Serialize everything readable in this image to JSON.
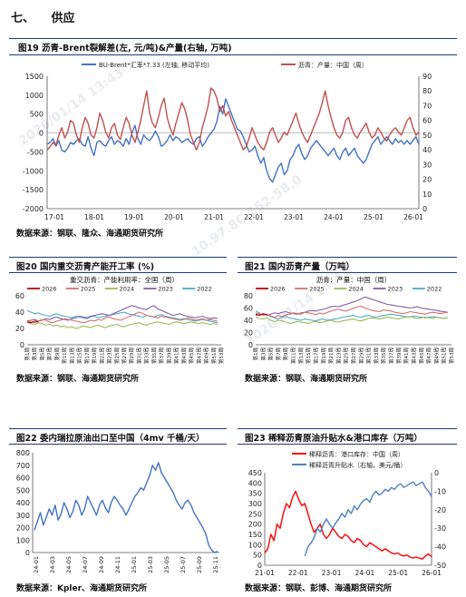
{
  "section": {
    "number": "七、",
    "title": "供应"
  },
  "fig19": {
    "title": "图19 沥青-Brent裂解差(左, 元/吨)&产量(右轴, 万吨)",
    "source": "数据来源：钢联、隆众、海通期货研究所",
    "chart_data": {
      "type": "line",
      "x_tick_labels": [
        "17-01",
        "18-01",
        "19-01",
        "20-01",
        "21-01",
        "22-01",
        "23-01",
        "24-01",
        "25-01",
        "26-01"
      ],
      "y_left_ticks": [
        "1500",
        "1000",
        "500",
        "0",
        "-500",
        "-1000",
        "-1500",
        "-2000"
      ],
      "y_right_ticks": [
        "90",
        "80",
        "70",
        "60",
        "50",
        "40",
        "30",
        "20",
        "10",
        "0"
      ],
      "ylim_left": [
        -2000,
        1500
      ],
      "ylim_right": [
        0,
        90
      ],
      "series": [
        {
          "name": "BU-Brent*汇率*7.33 (左轴, 移动平均)",
          "color": "#4472c4",
          "axis": "left",
          "values": [
            -300,
            -250,
            -150,
            -350,
            -200,
            -450,
            -500,
            -400,
            -250,
            -300,
            -200,
            -150,
            -300,
            -350,
            -100,
            -400,
            -600,
            -250,
            -200,
            -300,
            -350,
            -200,
            -100,
            -300,
            -200,
            -250,
            -350,
            -150,
            -300,
            0,
            200,
            -150,
            -300,
            -50,
            -150,
            -200,
            -100,
            50,
            -100,
            -350,
            -300,
            -200,
            -50,
            -200,
            -100,
            -150,
            -250,
            -200,
            -150,
            -250,
            -300,
            -150,
            -100,
            -350,
            -250,
            -100,
            0,
            100,
            300,
            700,
            500,
            900,
            700,
            500,
            300,
            100,
            50,
            -100,
            -300,
            -500,
            -450,
            -350,
            -600,
            -800,
            -650,
            -1000,
            -1200,
            -1300,
            -1100,
            -900,
            -800,
            -1100,
            -1000,
            -700,
            -600,
            -400,
            -300,
            -550,
            -700,
            -600,
            -400,
            -300,
            -200,
            -300,
            -400,
            -500,
            -600,
            -500,
            -400,
            -600,
            -700,
            -500,
            -400,
            -600,
            -500,
            -400,
            -600,
            -700,
            -800,
            -700,
            -500,
            -300,
            -200,
            -100,
            -300,
            -200,
            -100,
            -200,
            -300,
            -150,
            -250,
            -200,
            -300,
            -200,
            -300,
            -200,
            -100,
            -300
          ]
        },
        {
          "name": "沥青：产量：中国（周）",
          "color": "#c0504d",
          "axis": "right",
          "values": [
            40,
            42,
            45,
            43,
            50,
            55,
            48,
            52,
            60,
            58,
            50,
            45,
            55,
            62,
            58,
            50,
            48,
            55,
            65,
            60,
            52,
            48,
            55,
            58,
            50,
            47,
            55,
            62,
            58,
            50,
            45,
            52,
            60,
            70,
            80,
            65,
            58,
            55,
            62,
            70,
            75,
            62,
            55,
            50,
            58,
            65,
            72,
            68,
            60,
            50,
            45,
            40,
            45,
            55,
            62,
            70,
            82,
            80,
            75,
            66,
            70,
            63,
            66,
            60,
            55,
            50,
            45,
            40,
            42,
            48,
            55,
            50,
            45,
            42,
            40,
            45,
            52,
            55,
            50,
            45,
            48,
            52,
            50,
            55,
            60,
            65,
            58,
            52,
            48,
            45,
            50,
            55,
            60,
            65,
            72,
            80,
            70,
            62,
            55,
            50,
            48,
            52,
            60,
            62,
            55,
            50,
            48,
            52,
            55,
            58,
            52,
            48,
            50,
            55,
            52,
            48,
            46,
            50,
            53,
            55,
            52,
            50,
            55,
            60,
            62,
            55,
            50,
            52
          ]
        }
      ]
    }
  },
  "fig20": {
    "title": "图20 国内重交沥青产能开工率 (%)",
    "source": "数据来源：钢联、海通期货研究所",
    "chart_data": {
      "type": "line",
      "title": "重交沥青：产能利用率：全国（周）",
      "y_ticks": [
        "60",
        "40",
        "20",
        "0"
      ],
      "ylim": [
        0,
        60
      ],
      "x_tick_labels": [
        "第1周",
        "第3周",
        "第5周",
        "第7周",
        "第9周",
        "第11周",
        "第13周",
        "第15周",
        "第17周",
        "第19周",
        "第21周",
        "第23周",
        "第25周",
        "第27周",
        "第29周",
        "第31周",
        "第33周",
        "第35周",
        "第37周",
        "第39周",
        "第41周",
        "第43周",
        "第45周",
        "第47周",
        "第49周",
        "第51周",
        "第53周"
      ],
      "series": [
        {
          "name": "2026",
          "color": "#c00000",
          "values": [
            28,
            27,
            29,
            28
          ]
        },
        {
          "name": "2025",
          "color": "#d76f6f",
          "values": [
            30,
            28,
            27,
            29,
            31,
            30,
            28,
            27,
            29,
            30,
            32,
            31,
            30,
            29,
            28,
            27,
            28,
            30,
            29,
            31,
            30,
            33,
            34,
            32,
            31,
            30,
            32,
            34,
            36,
            38,
            40,
            38,
            36,
            35,
            34,
            33,
            35,
            34,
            33,
            32,
            31,
            30,
            31,
            33,
            32,
            30,
            31,
            32,
            30,
            31,
            30,
            29
          ]
        },
        {
          "name": "2024",
          "color": "#9bbb59",
          "values": [
            27,
            26,
            25,
            27,
            26,
            24,
            25,
            23,
            24,
            22,
            23,
            21,
            22,
            20,
            21,
            23,
            22,
            21,
            23,
            24,
            22,
            21,
            23,
            24,
            25,
            23,
            22,
            24,
            25,
            26,
            27,
            25,
            24,
            26,
            27,
            28,
            27,
            26,
            25,
            27,
            28,
            27,
            26,
            27,
            28,
            27,
            26,
            27,
            26,
            25,
            26,
            25
          ]
        },
        {
          "name": "2023",
          "color": "#7f5fa9",
          "values": [
            29,
            30,
            31,
            29,
            30,
            32,
            31,
            33,
            34,
            32,
            31,
            30,
            32,
            33,
            35,
            34,
            33,
            35,
            36,
            37,
            38,
            37,
            36,
            38,
            40,
            42,
            44,
            46,
            48,
            47,
            45,
            44,
            43,
            46,
            48,
            44,
            42,
            40,
            38,
            36,
            37,
            38,
            36,
            35,
            34,
            33,
            34,
            35,
            33,
            32,
            33,
            32
          ]
        },
        {
          "name": "2022",
          "color": "#4bacc6",
          "values": [
            42,
            40,
            38,
            39,
            37,
            36,
            35,
            37,
            38,
            36,
            35,
            34,
            33,
            35,
            34,
            33,
            32,
            34,
            35,
            33,
            34,
            35,
            36,
            37,
            38,
            39,
            40,
            38,
            37,
            36,
            35,
            34,
            36,
            35,
            34,
            36,
            37,
            35,
            34,
            33,
            32,
            31,
            32,
            31,
            30,
            29,
            30,
            31,
            30,
            29,
            28,
            27
          ]
        }
      ]
    }
  },
  "fig21": {
    "title": "图21 国内沥青产量（万吨）",
    "source": "数据来源：钢联、海通期货研究所",
    "chart_data": {
      "type": "line",
      "title": "沥青：产量：中国（周）",
      "y_ticks": [
        "80",
        "60",
        "40",
        "20",
        "0"
      ],
      "ylim": [
        0,
        80
      ],
      "x_tick_labels": [
        "第1周",
        "第3周",
        "第5周",
        "第7周",
        "第9周",
        "第11周",
        "第13周",
        "第15周",
        "第17周",
        "第19周",
        "第21周",
        "第23周",
        "第25周",
        "第27周",
        "第29周",
        "第31周",
        "第33周",
        "第35周",
        "第37周",
        "第39周",
        "第41周",
        "第43周",
        "第45周",
        "第47周",
        "第49周",
        "第51周",
        "第53周"
      ],
      "series": [
        {
          "name": "2026",
          "color": "#c00000",
          "values": [
            50,
            48,
            51,
            49
          ]
        },
        {
          "name": "2025",
          "color": "#d76f6f",
          "values": [
            52,
            50,
            48,
            50,
            47,
            45,
            48,
            46,
            49,
            50,
            52,
            51,
            50,
            53,
            52,
            51,
            49,
            52,
            50,
            53,
            55,
            57,
            58,
            56,
            55,
            57,
            60,
            62,
            63,
            60,
            58,
            56,
            55,
            54,
            57,
            56,
            55,
            53,
            52,
            51,
            52,
            54,
            53,
            52,
            51,
            50,
            52,
            53,
            52,
            51,
            52,
            53
          ]
        },
        {
          "name": "2024",
          "color": "#9bbb59",
          "values": [
            45,
            43,
            42,
            44,
            40,
            38,
            40,
            39,
            37,
            35,
            36,
            38,
            37,
            36,
            35,
            37,
            38,
            36,
            37,
            39,
            40,
            38,
            37,
            39,
            40,
            41,
            42,
            40,
            39,
            41,
            43,
            44,
            43,
            42,
            44,
            45,
            44,
            43,
            42,
            44,
            45,
            46,
            44,
            43,
            44,
            45,
            44,
            43,
            45,
            44,
            43,
            44
          ]
        },
        {
          "name": "2023",
          "color": "#7f5fa9",
          "values": [
            48,
            49,
            50,
            48,
            50,
            52,
            51,
            53,
            54,
            52,
            51,
            50,
            52,
            53,
            55,
            56,
            55,
            57,
            58,
            60,
            62,
            63,
            62,
            64,
            66,
            68,
            70,
            72,
            75,
            78,
            76,
            74,
            72,
            70,
            68,
            66,
            65,
            64,
            63,
            62,
            61,
            60,
            61,
            62,
            60,
            59,
            58,
            57,
            56,
            55,
            54,
            53
          ]
        },
        {
          "name": "2022",
          "color": "#4bacc6",
          "values": [
            55,
            52,
            48,
            50,
            46,
            44,
            42,
            45,
            46,
            44,
            43,
            41,
            40,
            42,
            41,
            40,
            39,
            41,
            42,
            40,
            41,
            42,
            43,
            45,
            46,
            47,
            48,
            46,
            45,
            47,
            48,
            46,
            45,
            47,
            48,
            49,
            50,
            49,
            48,
            47,
            46,
            45,
            47,
            46,
            45,
            44,
            45,
            46,
            45,
            44,
            43,
            44
          ]
        }
      ]
    }
  },
  "fig22": {
    "title": "图22 委内瑞拉原油出口至中国（4mv 千桶/天）",
    "source": "数据来源：Kpler、海通期货研究所",
    "chart_data": {
      "type": "line",
      "y_ticks": [
        "800",
        "700",
        "600",
        "500",
        "400",
        "300",
        "200",
        "100",
        "0"
      ],
      "ylim": [
        0,
        800
      ],
      "x_tick_labels": [
        "24-01",
        "24-03",
        "24-05",
        "24-07",
        "24-09",
        "24-11",
        "25-01",
        "25-03",
        "25-05",
        "25-07",
        "25-09",
        "25-11"
      ],
      "series": [
        {
          "name": "",
          "color": "#4472c4",
          "values": [
            180,
            250,
            320,
            220,
            280,
            350,
            300,
            380,
            260,
            310,
            400,
            350,
            280,
            330,
            420,
            380,
            300,
            350,
            450,
            400,
            350,
            300,
            380,
            420,
            360,
            320,
            400,
            450,
            420,
            380,
            350,
            300,
            350,
            400,
            450,
            480,
            520,
            500,
            560,
            620,
            700,
            660,
            720,
            640,
            600,
            560,
            520,
            480,
            420,
            380,
            350,
            400,
            420,
            380,
            320,
            280,
            240,
            200,
            150,
            60,
            20,
            0,
            10
          ]
        }
      ]
    }
  },
  "fig23": {
    "title": "图23 稀释沥青原油升贴水&港口库存（万吨）",
    "source": "数据来源：钢联、彭博、海通期货研究所",
    "chart_data": {
      "type": "line",
      "y_left_ticks": [
        "450",
        "400",
        "350",
        "300",
        "250",
        "200",
        "150",
        "100",
        "50",
        "0"
      ],
      "y_right_ticks": [
        "0",
        "-10",
        "-20",
        "-30",
        "-40",
        "-50"
      ],
      "ylim_left": [
        0,
        450
      ],
      "ylim_right": [
        -50,
        0
      ],
      "x_tick_labels": [
        "21-01",
        "22-01",
        "23-01",
        "24-01",
        "25-01",
        "26-01"
      ],
      "series": [
        {
          "name": "稀释沥青：港口库存：中国（周）",
          "color": "#ff0000",
          "axis": "left",
          "values": [
            60,
            80,
            150,
            120,
            200,
            180,
            250,
            300,
            280,
            330,
            360,
            320,
            290,
            300,
            250,
            200,
            160,
            180,
            200,
            150,
            130,
            150,
            180,
            160,
            140,
            130,
            150,
            140,
            120,
            110,
            130,
            120,
            100,
            90,
            110,
            100,
            90,
            80,
            70,
            80,
            70,
            60,
            55,
            60,
            50,
            45,
            50,
            40,
            35,
            40,
            35,
            30,
            45,
            55,
            40
          ]
        },
        {
          "name": "稀释沥青升贴水（右轴，美元/桶）",
          "color": "#4f81bd",
          "axis": "right",
          "values": [
            null,
            null,
            null,
            null,
            null,
            null,
            null,
            null,
            null,
            null,
            null,
            null,
            null,
            -45,
            -40,
            -38,
            -35,
            -30,
            -32,
            -28,
            -25,
            -28,
            -30,
            -27,
            -25,
            -22,
            -24,
            -20,
            -22,
            -18,
            -20,
            -17,
            -15,
            -14,
            -16,
            -12,
            -10,
            -12,
            -11,
            -9,
            -10,
            -8,
            -9,
            -7,
            -6,
            -8,
            -7,
            -6,
            -5,
            -7,
            -6,
            -5,
            -8,
            -10,
            -13
          ]
        }
      ]
    }
  },
  "watermarks": [
    "2026/01/14 13:43",
    "10.97.8C.152-58.0",
    "2026/01/14 13:43"
  ]
}
